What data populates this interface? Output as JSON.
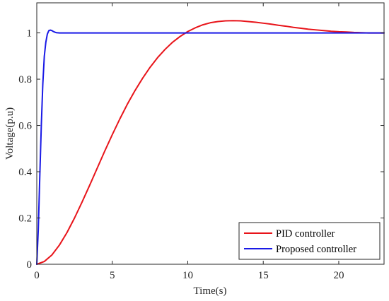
{
  "chart_data": {
    "type": "line",
    "title": "",
    "xlabel": "Time(s)",
    "ylabel": "Voltage(p.u)",
    "xlim": [
      0,
      23
    ],
    "ylim": [
      0,
      1.13
    ],
    "xticks": [
      0,
      5,
      10,
      15,
      20
    ],
    "yticks": [
      0,
      0.2,
      0.4,
      0.6,
      0.8,
      1
    ],
    "xtick_labels": [
      "0",
      "5",
      "10",
      "15",
      "20"
    ],
    "ytick_labels": [
      "0",
      "0.2",
      "0.4",
      "0.6",
      "0.8",
      "1"
    ],
    "grid": false,
    "legend_position": "bottom-right",
    "series": [
      {
        "name": "PID controller",
        "color": "#e8141a",
        "x": [
          0,
          0.5,
          1,
          1.5,
          2,
          2.5,
          3,
          3.5,
          4,
          4.5,
          5,
          5.5,
          6,
          6.5,
          7,
          7.5,
          8,
          8.5,
          9,
          9.5,
          10,
          10.5,
          11,
          11.5,
          12,
          12.5,
          13,
          13.5,
          14,
          14.5,
          15,
          15.5,
          16,
          16.5,
          17,
          17.5,
          18,
          18.5,
          19,
          19.5,
          20,
          20.5,
          21,
          21.5,
          22,
          22.5,
          23
        ],
        "values": [
          0,
          0.012,
          0.04,
          0.083,
          0.137,
          0.2,
          0.269,
          0.341,
          0.415,
          0.489,
          0.56,
          0.628,
          0.692,
          0.75,
          0.803,
          0.851,
          0.893,
          0.929,
          0.96,
          0.985,
          1.006,
          1.022,
          1.035,
          1.044,
          1.049,
          1.052,
          1.053,
          1.052,
          1.049,
          1.046,
          1.042,
          1.038,
          1.033,
          1.029,
          1.024,
          1.02,
          1.016,
          1.013,
          1.01,
          1.007,
          1.005,
          1.004,
          1.002,
          1.001,
          1.0,
          1.0,
          1.0
        ]
      },
      {
        "name": "Proposed controller",
        "color": "#1a1ae6",
        "x": [
          0,
          0.1,
          0.2,
          0.3,
          0.4,
          0.5,
          0.6,
          0.7,
          0.8,
          0.9,
          1.0,
          1.1,
          1.2,
          1.3,
          1.5,
          1.7,
          2.0,
          3,
          5,
          10,
          15,
          20,
          23
        ],
        "values": [
          0,
          0.15,
          0.38,
          0.6,
          0.78,
          0.9,
          0.96,
          0.995,
          1.01,
          1.012,
          1.01,
          1.006,
          1.003,
          1.001,
          1.0,
          1.0,
          1.0,
          1.0,
          1.0,
          1.0,
          1.0,
          1.0,
          1.0
        ]
      }
    ]
  }
}
